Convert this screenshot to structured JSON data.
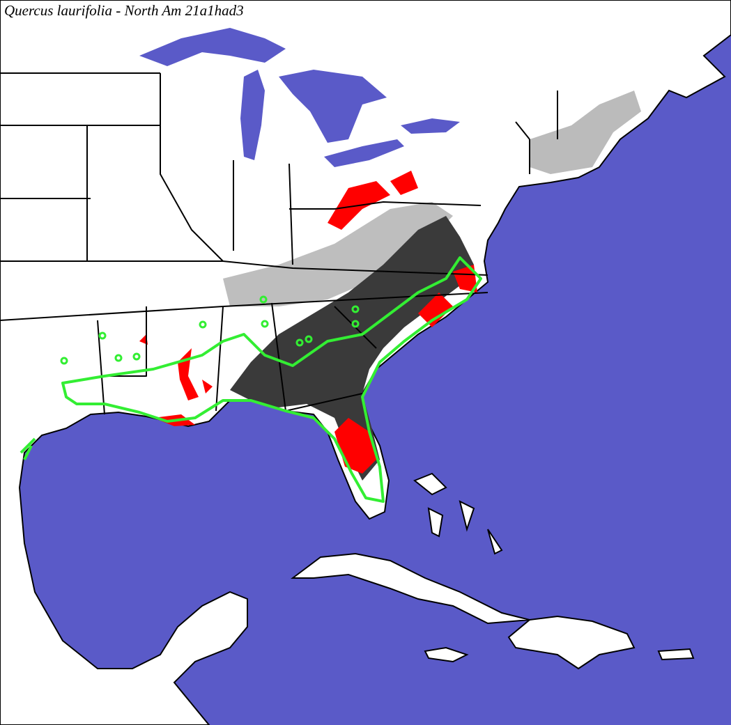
{
  "title": "Quercus laurifolia - North Am 21a1had3"
}
